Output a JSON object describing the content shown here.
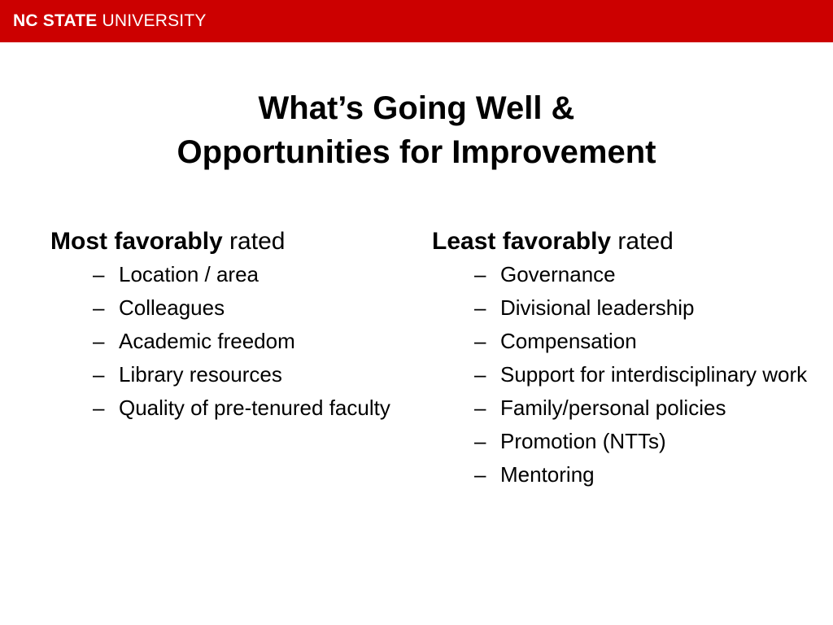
{
  "header": {
    "logo_bold": "NC STATE",
    "logo_regular": "UNIVERSITY",
    "color": "#cc0000"
  },
  "title": {
    "line1": "What’s Going Well &",
    "line2": "Opportunities for Improvement"
  },
  "left": {
    "heading_bold": "Most favorably",
    "heading_rest": " rated",
    "items": [
      "Location / area",
      "Colleagues",
      "Academic freedom",
      "Library resources",
      "Quality of pre-tenured faculty"
    ]
  },
  "right": {
    "heading_bold": "Least favorably",
    "heading_rest": " rated",
    "items": [
      "Governance",
      "Divisional leadership",
      "Compensation",
      "Support for interdisciplinary work",
      "Family/personal policies",
      "Promotion (NTTs)",
      "Mentoring"
    ]
  },
  "bullet": "–"
}
